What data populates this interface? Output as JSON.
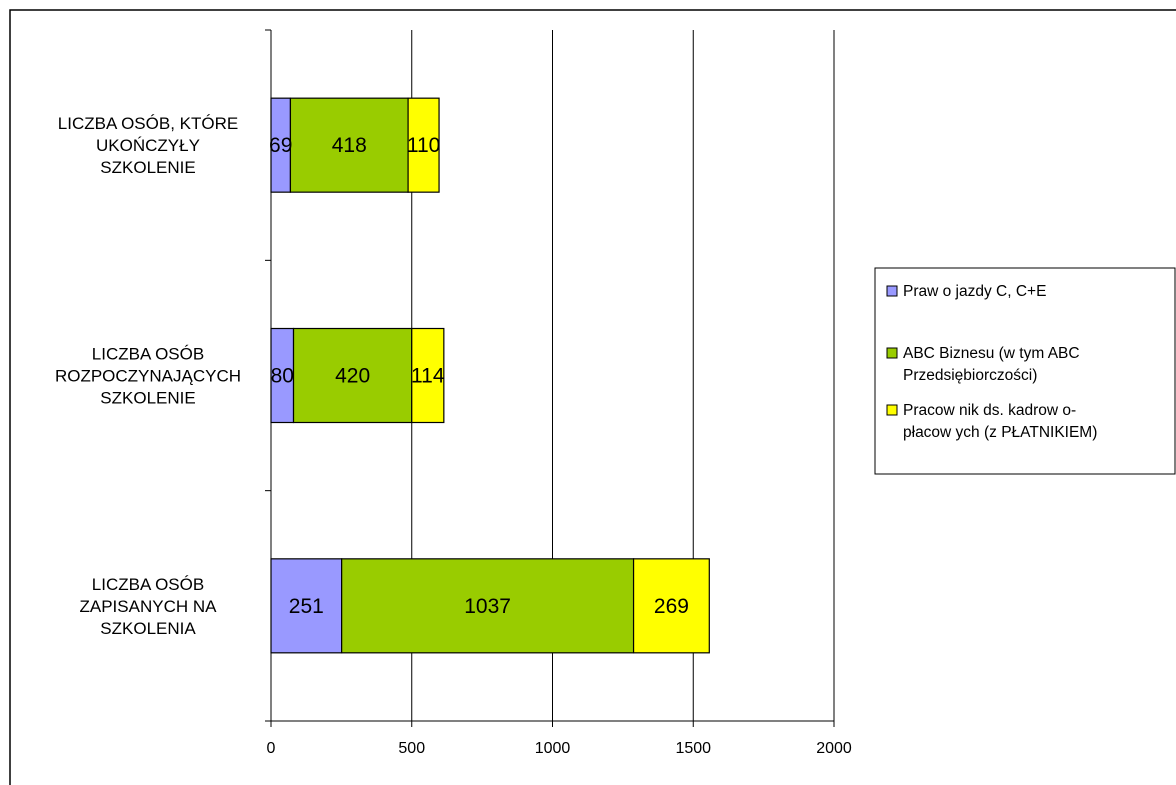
{
  "chart_data": {
    "type": "bar",
    "orientation": "horizontal",
    "stacked": true,
    "categories": [
      [
        "LICZBA OSÓB, KTÓRE",
        "UKOŃCZYŁY",
        "SZKOLENIE"
      ],
      [
        "LICZBA OSÓB",
        "ROZPOCZYNAJĄCYCH",
        "SZKOLENIE"
      ],
      [
        "LICZBA OSÓB",
        "ZAPISANYCH NA",
        "SZKOLENIA"
      ]
    ],
    "series": [
      {
        "name_lines": [
          "Praw o jazdy C, C+E"
        ],
        "color": "#9999FF",
        "values": [
          69,
          80,
          251
        ],
        "labels": [
          "69",
          "80",
          "251"
        ]
      },
      {
        "name_lines": [
          "ABC Biznesu (w  tym ABC",
          "Przedsiębiorczości)"
        ],
        "color": "#99CC00",
        "values": [
          418,
          420,
          1037
        ],
        "labels": [
          "418",
          "420",
          "1037"
        ]
      },
      {
        "name_lines": [
          "Pracow nik ds. kadrow o-",
          "płacow ych (z PŁATNIKIEM)"
        ],
        "color": "#FFFF00",
        "values": [
          110,
          114,
          269
        ],
        "labels": [
          "110",
          "114",
          "269"
        ]
      }
    ],
    "xlim": [
      0,
      2000
    ],
    "xticks": [
      0,
      500,
      1000,
      1500,
      2000
    ],
    "xtick_labels": [
      "0",
      "500",
      "1000",
      "1500",
      "2000"
    ],
    "grid": "vertical",
    "legend": "right"
  }
}
